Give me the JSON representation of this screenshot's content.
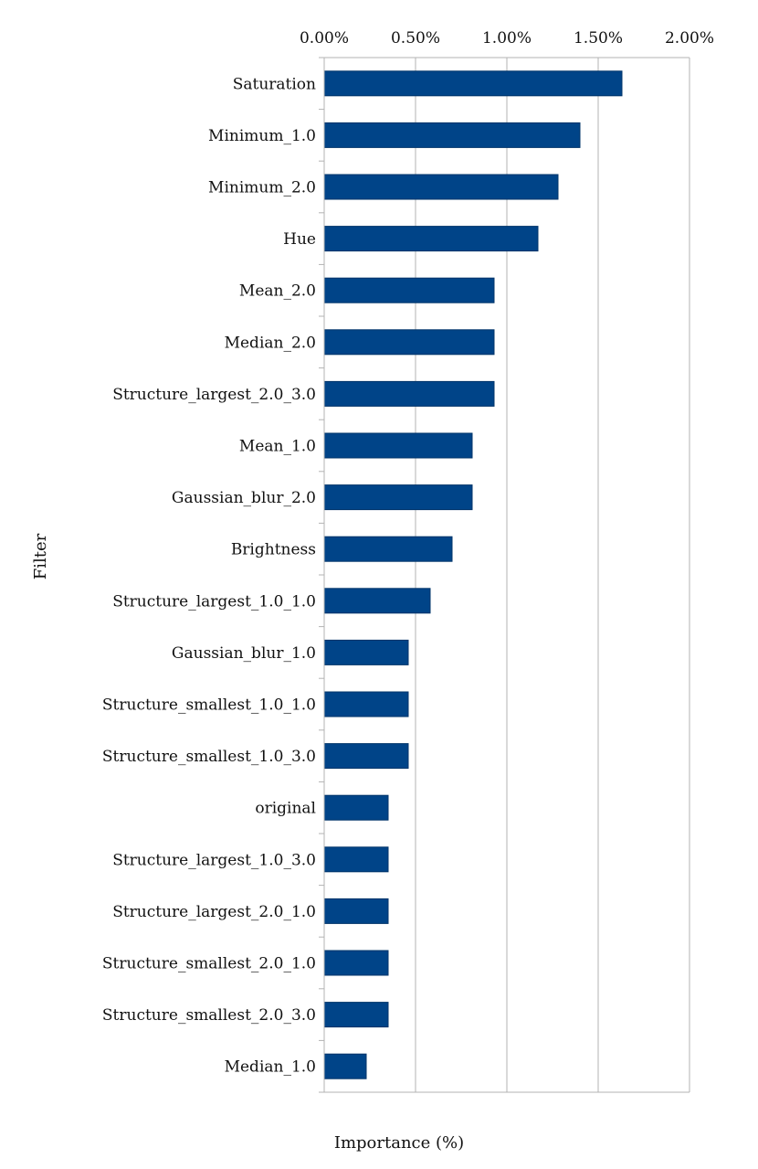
{
  "chart_data": {
    "type": "bar",
    "orientation": "horizontal",
    "xlabel": "Importance (%)",
    "ylabel": "Filter",
    "xlim": [
      0,
      2.0
    ],
    "xticks": [
      0,
      0.5,
      1.0,
      1.5,
      2.0
    ],
    "xtick_labels": [
      "0.00%",
      "0.50%",
      "1.00%",
      "1.50%",
      "2.00%"
    ],
    "x_axis_position": "top",
    "grid": "vertical",
    "color": "#004488",
    "categories": [
      "Saturation",
      "Minimum_1.0",
      "Minimum_2.0",
      "Hue",
      "Mean_2.0",
      "Median_2.0",
      "Structure_largest_2.0_3.0",
      "Mean_1.0",
      "Gaussian_blur_2.0",
      "Brightness",
      "Structure_largest_1.0_1.0",
      "Gaussian_blur_1.0",
      "Structure_smallest_1.0_1.0",
      "Structure_smallest_1.0_3.0",
      "original",
      "Structure_largest_1.0_3.0",
      "Structure_largest_2.0_1.0",
      "Structure_smallest_2.0_1.0",
      "Structure_smallest_2.0_3.0",
      "Median_1.0"
    ],
    "values": [
      1.63,
      1.4,
      1.28,
      1.17,
      0.93,
      0.93,
      0.93,
      0.81,
      0.81,
      0.7,
      0.58,
      0.46,
      0.46,
      0.46,
      0.35,
      0.35,
      0.35,
      0.35,
      0.35,
      0.23
    ]
  }
}
